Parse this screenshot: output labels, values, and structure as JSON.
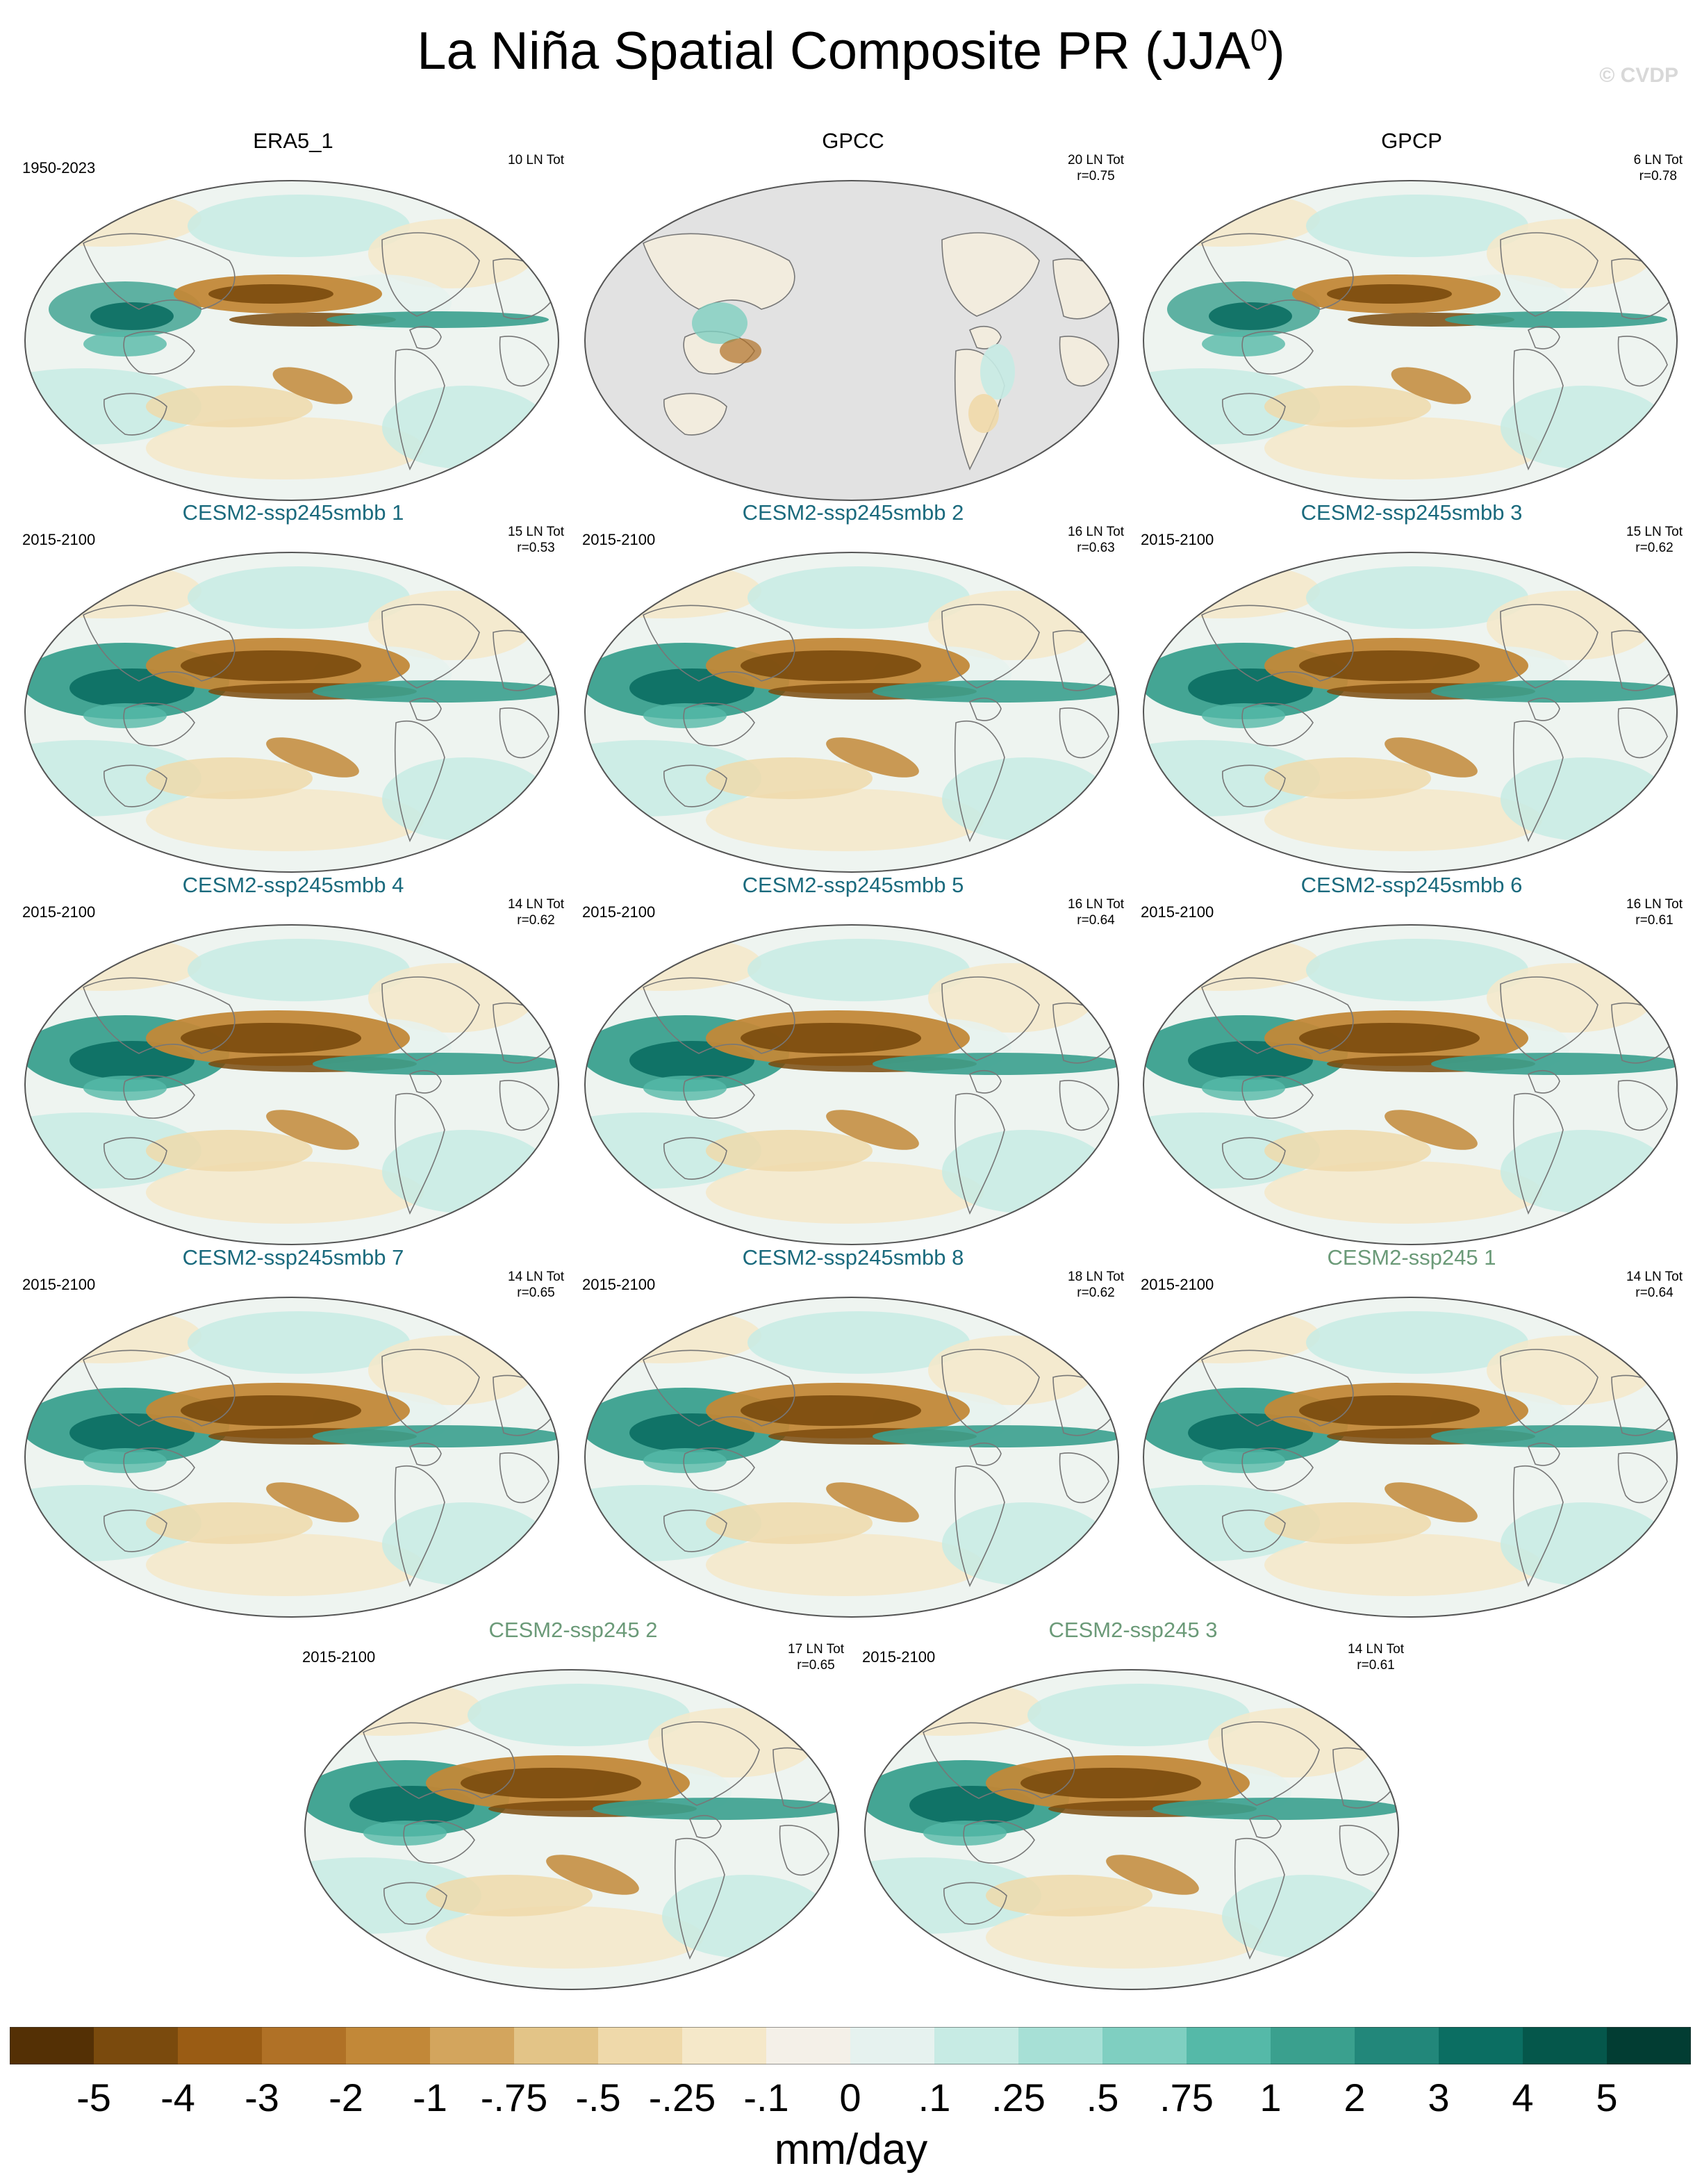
{
  "title_main": "La Niña Spatial Composite PR (JJA",
  "title_sup": "0",
  "title_close": ")",
  "watermark": "© CVDP",
  "panels": [
    {
      "title": "ERA5_1",
      "period": "1950-2023",
      "stats1": "10 LN Tot",
      "stats2": "",
      "color": "#000000",
      "style": "obs"
    },
    {
      "title": "GPCC",
      "period": "",
      "stats1": "20 LN Tot",
      "stats2": "r=0.75",
      "color": "#000000",
      "style": "gpcc"
    },
    {
      "title": "GPCP",
      "period": "",
      "stats1": "6 LN Tot",
      "stats2": "r=0.78",
      "color": "#000000",
      "style": "obs"
    },
    {
      "title": "CESM2-ssp245smbb 1",
      "period": "2015-2100",
      "stats1": "15 LN Tot",
      "stats2": "r=0.53",
      "color": "#1a6a7d",
      "style": "model"
    },
    {
      "title": "CESM2-ssp245smbb 2",
      "period": "2015-2100",
      "stats1": "16 LN Tot",
      "stats2": "r=0.63",
      "color": "#1a6a7d",
      "style": "model"
    },
    {
      "title": "CESM2-ssp245smbb 3",
      "period": "2015-2100",
      "stats1": "15 LN Tot",
      "stats2": "r=0.62",
      "color": "#1a6a7d",
      "style": "model"
    },
    {
      "title": "CESM2-ssp245smbb 4",
      "period": "2015-2100",
      "stats1": "14 LN Tot",
      "stats2": "r=0.62",
      "color": "#1a6a7d",
      "style": "model"
    },
    {
      "title": "CESM2-ssp245smbb 5",
      "period": "2015-2100",
      "stats1": "16 LN Tot",
      "stats2": "r=0.64",
      "color": "#1a6a7d",
      "style": "model"
    },
    {
      "title": "CESM2-ssp245smbb 6",
      "period": "2015-2100",
      "stats1": "16 LN Tot",
      "stats2": "r=0.61",
      "color": "#1a6a7d",
      "style": "model"
    },
    {
      "title": "CESM2-ssp245smbb 7",
      "period": "2015-2100",
      "stats1": "14 LN Tot",
      "stats2": "r=0.65",
      "color": "#1a6a7d",
      "style": "model"
    },
    {
      "title": "CESM2-ssp245smbb 8",
      "period": "2015-2100",
      "stats1": "18 LN Tot",
      "stats2": "r=0.62",
      "color": "#1a6a7d",
      "style": "model"
    },
    {
      "title": "CESM2-ssp245 1",
      "period": "2015-2100",
      "stats1": "14 LN Tot",
      "stats2": "r=0.64",
      "color": "#6b9a78",
      "style": "model"
    },
    {
      "title": "CESM2-ssp245 2",
      "period": "2015-2100",
      "stats1": "17 LN Tot",
      "stats2": "r=0.65",
      "color": "#6b9a78",
      "style": "model"
    },
    {
      "title": "CESM2-ssp245 3",
      "period": "2015-2100",
      "stats1": "14 LN Tot",
      "stats2": "r=0.61",
      "color": "#6b9a78",
      "style": "model"
    }
  ],
  "colorbar": {
    "colors": [
      "#543005",
      "#7a4a0d",
      "#9a5c14",
      "#b07126",
      "#c28838",
      "#d3a55d",
      "#e3c487",
      "#efd9aa",
      "#f5e8c9",
      "#f4f0e8",
      "#e6f2ef",
      "#c7ebe4",
      "#a7e0d6",
      "#7fcfc1",
      "#55b9a8",
      "#3aa08e",
      "#22877a",
      "#0b6e62",
      "#05574b",
      "#023d33"
    ],
    "labels": [
      "-5",
      "-4",
      "-3",
      "-2",
      "-1",
      "-.75",
      "-.5",
      "-.25",
      "-.1",
      "0",
      ".1",
      ".25",
      ".5",
      ".75",
      "1",
      "2",
      "3",
      "4",
      "5"
    ]
  },
  "units": "mm/day"
}
